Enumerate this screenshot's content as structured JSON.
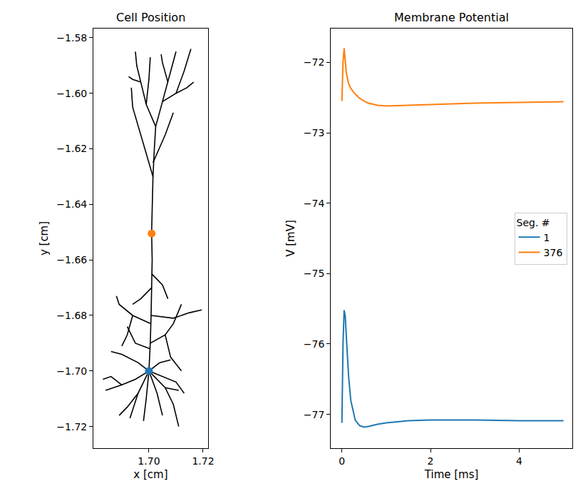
{
  "chart_data": [
    {
      "type": "line",
      "title": "Cell Position",
      "x_label": "x [cm]",
      "y_label": "y [cm]",
      "xlim": [
        1.6795,
        1.7218
      ],
      "ylim": [
        -1.7278,
        -1.5767
      ],
      "xticks": [
        {
          "value": 1.7,
          "label": "1.70"
        },
        {
          "value": 1.72,
          "label": "1.72"
        }
      ],
      "yticks": [
        {
          "value": -1.58,
          "label": "−1.58"
        },
        {
          "value": -1.6,
          "label": "−1.60"
        },
        {
          "value": -1.62,
          "label": "−1.62"
        },
        {
          "value": -1.64,
          "label": "−1.64"
        },
        {
          "value": -1.66,
          "label": "−1.66"
        },
        {
          "value": -1.68,
          "label": "−1.68"
        },
        {
          "value": -1.7,
          "label": "−1.70"
        },
        {
          "value": -1.72,
          "label": "−1.72"
        }
      ],
      "grid": false,
      "series": [
        {
          "type": "line",
          "color": "#000000",
          "x": [
            1.7,
            1.7005,
            1.7008,
            1.701,
            1.7012,
            1.701,
            1.7012,
            1.7015,
            1.702,
            1.7025,
            null,
            1.7025,
            1.699,
            1.697,
            1.6955,
            1.695,
            null,
            1.699,
            1.7,
            1.7005,
            null,
            1.7025,
            1.705,
            1.707,
            1.709,
            1.71,
            null,
            1.707,
            1.705,
            1.7045,
            null,
            1.705,
            1.71,
            1.713,
            1.7155,
            null,
            1.71,
            1.714,
            1.7165,
            null,
            1.697,
            1.694,
            1.6925,
            null,
            1.7015,
            1.697,
            1.694,
            1.6935,
            null,
            1.7015,
            1.706,
            1.709,
            null,
            1.7008,
            1.709,
            1.715,
            1.7195,
            null,
            1.7008,
            1.694,
            1.689,
            1.688,
            null,
            1.694,
            1.692,
            1.69,
            null,
            1.7005,
            1.706,
            1.709,
            1.712,
            null,
            1.701,
            1.697,
            1.694,
            null,
            1.701,
            1.705,
            1.707,
            null,
            1.7005,
            1.695,
            1.692,
            null,
            1.706,
            1.708,
            1.712,
            null,
            1.7,
            1.695,
            1.69,
            1.684,
            null,
            1.7,
            1.696,
            1.692,
            1.689,
            null,
            1.7,
            1.699,
            1.698,
            null,
            1.7,
            1.703,
            1.705,
            null,
            1.7,
            1.706,
            1.709,
            1.711,
            null,
            1.7,
            1.705,
            1.71,
            1.713,
            null,
            1.7,
            1.696,
            1.69,
            1.686,
            null,
            1.7,
            1.704,
            1.708,
            null,
            1.69,
            1.686,
            1.683,
            null,
            1.696,
            1.693,
            null,
            1.706,
            1.711
          ],
          "y": [
            -1.7,
            -1.69,
            -1.68,
            -1.67,
            -1.66,
            -1.65,
            -1.64,
            -1.63,
            -1.62,
            -1.612,
            null,
            -1.612,
            -1.604,
            -1.596,
            -1.59,
            -1.585,
            null,
            -1.604,
            -1.595,
            -1.587,
            null,
            -1.612,
            -1.603,
            -1.596,
            -1.589,
            -1.585,
            null,
            -1.596,
            -1.589,
            -1.586,
            null,
            -1.603,
            -1.6,
            -1.592,
            -1.584,
            null,
            -1.6,
            -1.598,
            -1.596,
            null,
            -1.596,
            -1.595,
            -1.594,
            null,
            -1.63,
            -1.615,
            -1.605,
            -1.598,
            null,
            -1.625,
            -1.615,
            -1.607,
            null,
            -1.68,
            -1.681,
            -1.679,
            -1.678,
            null,
            -1.683,
            -1.68,
            -1.676,
            -1.673,
            null,
            -1.68,
            -1.687,
            -1.691,
            null,
            -1.69,
            -1.687,
            -1.683,
            -1.676,
            null,
            -1.67,
            -1.674,
            -1.676,
            null,
            -1.665,
            -1.669,
            -1.674,
            null,
            -1.692,
            -1.69,
            -1.684,
            null,
            -1.687,
            -1.695,
            -1.7,
            null,
            -1.7,
            -1.703,
            -1.705,
            -1.707,
            null,
            -1.7,
            -1.708,
            -1.713,
            -1.716,
            null,
            -1.7,
            -1.71,
            -1.718,
            null,
            -1.7,
            -1.708,
            -1.716,
            null,
            -1.7,
            -1.706,
            -1.712,
            -1.72,
            null,
            -1.7,
            -1.702,
            -1.704,
            -1.708,
            null,
            -1.7,
            -1.697,
            -1.694,
            -1.693,
            null,
            -1.7,
            -1.697,
            -1.696,
            null,
            -1.705,
            -1.702,
            -1.703,
            null,
            -1.708,
            -1.717,
            null,
            -1.706,
            -1.707
          ]
        },
        {
          "type": "scatter",
          "color": "#1f77b4",
          "x": [
            1.7
          ],
          "y": [
            -1.7
          ]
        },
        {
          "type": "scatter",
          "color": "#ff7f0e",
          "x": [
            1.701
          ],
          "y": [
            -1.6505
          ]
        }
      ]
    },
    {
      "type": "line",
      "title": "Membrane Potential",
      "x_label": "Time [ms]",
      "y_label": "V [mV]",
      "legend_title": "Seg. #",
      "legend": "center right",
      "grid": false,
      "xlim": [
        -0.25,
        5.2
      ],
      "ylim": [
        -77.48,
        -71.52
      ],
      "xticks": [
        0,
        2,
        4
      ],
      "yticks": [
        {
          "value": -77,
          "label": "−77"
        },
        {
          "value": -76,
          "label": "−76"
        },
        {
          "value": -75,
          "label": "−75"
        },
        {
          "value": -74,
          "label": "−74"
        },
        {
          "value": -73,
          "label": "−73"
        },
        {
          "value": -72,
          "label": "−72"
        }
      ],
      "x": [
        0,
        0.025,
        0.05,
        0.075,
        0.1,
        0.15,
        0.2,
        0.3,
        0.4,
        0.5,
        0.6,
        0.8,
        1.0,
        1.5,
        2,
        3,
        4,
        5
      ],
      "series": [
        {
          "name": "1",
          "color": "#1f77b4",
          "values": [
            -77.12,
            -76.0,
            -75.52,
            -75.6,
            -75.9,
            -76.45,
            -76.8,
            -77.08,
            -77.16,
            -77.18,
            -77.17,
            -77.14,
            -77.12,
            -77.09,
            -77.08,
            -77.08,
            -77.09,
            -77.09
          ]
        },
        {
          "name": "376",
          "color": "#ff7f0e",
          "values": [
            -72.55,
            -72.0,
            -71.8,
            -71.95,
            -72.15,
            -72.3,
            -72.37,
            -72.45,
            -72.51,
            -72.55,
            -72.58,
            -72.61,
            -72.62,
            -72.61,
            -72.6,
            -72.58,
            -72.57,
            -72.56
          ]
        }
      ]
    }
  ]
}
